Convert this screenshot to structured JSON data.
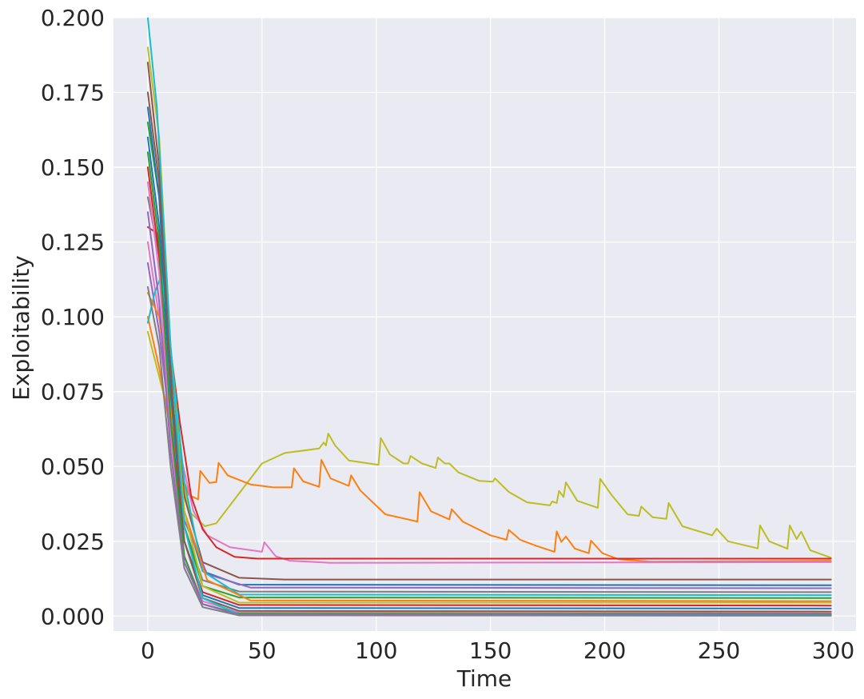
{
  "chart_data": {
    "type": "line",
    "title": "",
    "xlabel": "Time",
    "ylabel": "Exploitability",
    "xlim": [
      -15,
      310
    ],
    "ylim": [
      -0.005,
      0.2
    ],
    "xticks": [
      0,
      50,
      100,
      150,
      200,
      250,
      300
    ],
    "yticks": [
      0.0,
      0.025,
      0.05,
      0.075,
      0.1,
      0.125,
      0.15,
      0.175,
      0.2
    ],
    "ytick_labels": [
      "0.000",
      "0.025",
      "0.050",
      "0.075",
      "0.100",
      "0.125",
      "0.150",
      "0.175",
      "0.200"
    ],
    "grid": true,
    "legend": "none",
    "plot_background": "#eaeaf2",
    "series": [
      {
        "color": "#bcbd22",
        "points": [
          [
            0,
            0.095
          ],
          [
            10,
            0.065
          ],
          [
            18,
            0.035
          ],
          [
            25,
            0.03
          ],
          [
            30,
            0.031
          ],
          [
            40,
            0.041
          ],
          [
            50,
            0.051
          ],
          [
            60,
            0.0545
          ],
          [
            75,
            0.056
          ],
          [
            77,
            0.058
          ],
          [
            78,
            0.057
          ],
          [
            79,
            0.061
          ],
          [
            82,
            0.057
          ],
          [
            88,
            0.052
          ],
          [
            101,
            0.0505
          ],
          [
            102,
            0.0595
          ],
          [
            106,
            0.054
          ],
          [
            112,
            0.051
          ],
          [
            114,
            0.051
          ],
          [
            115,
            0.0535
          ],
          [
            120,
            0.051
          ],
          [
            126,
            0.0495
          ],
          [
            127,
            0.053
          ],
          [
            130,
            0.051
          ],
          [
            132,
            0.051
          ],
          [
            136,
            0.048
          ],
          [
            145,
            0.0452
          ],
          [
            151,
            0.0449
          ],
          [
            152,
            0.046
          ],
          [
            158,
            0.0415
          ],
          [
            166,
            0.038
          ],
          [
            176,
            0.037
          ],
          [
            177,
            0.0383
          ],
          [
            179,
            0.0378
          ],
          [
            180,
            0.0418
          ],
          [
            182,
            0.0398
          ],
          [
            183,
            0.0447
          ],
          [
            188,
            0.0385
          ],
          [
            197,
            0.0362
          ],
          [
            198,
            0.0459
          ],
          [
            203,
            0.0405
          ],
          [
            210,
            0.034
          ],
          [
            215,
            0.0335
          ],
          [
            216,
            0.0366
          ],
          [
            221,
            0.033
          ],
          [
            227,
            0.0325
          ],
          [
            228,
            0.0378
          ],
          [
            234,
            0.03
          ],
          [
            247,
            0.027
          ],
          [
            249,
            0.0292
          ],
          [
            254,
            0.025
          ],
          [
            267,
            0.0226
          ],
          [
            268,
            0.0303
          ],
          [
            272,
            0.025
          ],
          [
            280,
            0.0225
          ],
          [
            281,
            0.0303
          ],
          [
            284,
            0.0258
          ],
          [
            286,
            0.0282
          ],
          [
            290,
            0.022
          ],
          [
            299,
            0.0195
          ]
        ]
      },
      {
        "color": "#ff7f0e",
        "points": [
          [
            0,
            0.1
          ],
          [
            5,
            0.083
          ],
          [
            10,
            0.062
          ],
          [
            14,
            0.049
          ],
          [
            18,
            0.0405
          ],
          [
            22,
            0.039
          ],
          [
            23,
            0.0485
          ],
          [
            27,
            0.0445
          ],
          [
            30,
            0.0448
          ],
          [
            31,
            0.0512
          ],
          [
            35,
            0.047
          ],
          [
            45,
            0.044
          ],
          [
            55,
            0.043
          ],
          [
            63,
            0.043
          ],
          [
            64,
            0.0494
          ],
          [
            68,
            0.045
          ],
          [
            75,
            0.0432
          ],
          [
            76,
            0.0522
          ],
          [
            80,
            0.046
          ],
          [
            88,
            0.0435
          ],
          [
            89,
            0.047
          ],
          [
            93,
            0.042
          ],
          [
            104,
            0.034
          ],
          [
            118,
            0.0316
          ],
          [
            119,
            0.0414
          ],
          [
            124,
            0.035
          ],
          [
            132,
            0.0323
          ],
          [
            133,
            0.0357
          ],
          [
            138,
            0.0315
          ],
          [
            150,
            0.027
          ],
          [
            157,
            0.0255
          ],
          [
            158,
            0.0288
          ],
          [
            163,
            0.0255
          ],
          [
            170,
            0.0235
          ],
          [
            178,
            0.0215
          ],
          [
            179,
            0.0283
          ],
          [
            181,
            0.0248
          ],
          [
            183,
            0.0266
          ],
          [
            187,
            0.0225
          ],
          [
            193,
            0.021
          ],
          [
            194,
            0.0252
          ],
          [
            199,
            0.021
          ],
          [
            206,
            0.019
          ],
          [
            220,
            0.0182
          ],
          [
            299,
            0.0185
          ]
        ]
      },
      {
        "color": "#e377c2",
        "points": [
          [
            0,
            0.125
          ],
          [
            8,
            0.085
          ],
          [
            14,
            0.055
          ],
          [
            20,
            0.035
          ],
          [
            26,
            0.027
          ],
          [
            36,
            0.023
          ],
          [
            50,
            0.0215
          ],
          [
            51,
            0.0247
          ],
          [
            56,
            0.02
          ],
          [
            62,
            0.0185
          ],
          [
            80,
            0.0178
          ],
          [
            299,
            0.018
          ]
        ]
      },
      {
        "color": "#d62728",
        "points": [
          [
            0,
            0.13
          ],
          [
            4,
            0.128
          ],
          [
            9,
            0.095
          ],
          [
            14,
            0.065
          ],
          [
            19,
            0.04
          ],
          [
            24,
            0.029
          ],
          [
            30,
            0.023
          ],
          [
            38,
            0.0198
          ],
          [
            48,
            0.0192
          ],
          [
            299,
            0.0192
          ]
        ]
      },
      {
        "color": "#8c564b",
        "points": [
          [
            0,
            0.185
          ],
          [
            5,
            0.15
          ],
          [
            10,
            0.085
          ],
          [
            16,
            0.04
          ],
          [
            24,
            0.018
          ],
          [
            40,
            0.0128
          ],
          [
            60,
            0.0122
          ],
          [
            299,
            0.0122
          ]
        ]
      },
      {
        "color": "#1f77b4",
        "points": [
          [
            0,
            0.16
          ],
          [
            5,
            0.13
          ],
          [
            10,
            0.075
          ],
          [
            16,
            0.035
          ],
          [
            24,
            0.015
          ],
          [
            40,
            0.0105
          ],
          [
            299,
            0.0103
          ]
        ]
      },
      {
        "color": "#9467bd",
        "points": [
          [
            0,
            0.118
          ],
          [
            5,
            0.095
          ],
          [
            10,
            0.062
          ],
          [
            16,
            0.032
          ],
          [
            26,
            0.014
          ],
          [
            45,
            0.0095
          ],
          [
            299,
            0.0093
          ]
        ]
      },
      {
        "color": "#7f7f7f",
        "points": [
          [
            0,
            0.14
          ],
          [
            5,
            0.12
          ],
          [
            10,
            0.07
          ],
          [
            16,
            0.03
          ],
          [
            24,
            0.012
          ],
          [
            40,
            0.0082
          ],
          [
            299,
            0.008
          ]
        ]
      },
      {
        "color": "#17becf",
        "points": [
          [
            0,
            0.098
          ],
          [
            3,
            0.108
          ],
          [
            6,
            0.114
          ],
          [
            10,
            0.09
          ],
          [
            16,
            0.045
          ],
          [
            24,
            0.015
          ],
          [
            40,
            0.0072
          ],
          [
            299,
            0.007
          ]
        ]
      },
      {
        "color": "#2ca02c",
        "points": [
          [
            0,
            0.165
          ],
          [
            5,
            0.14
          ],
          [
            10,
            0.08
          ],
          [
            16,
            0.03
          ],
          [
            24,
            0.01
          ],
          [
            40,
            0.0062
          ],
          [
            299,
            0.006
          ]
        ]
      },
      {
        "color": "#ff7f0e",
        "points": [
          [
            0,
            0.108
          ],
          [
            5,
            0.1
          ],
          [
            10,
            0.07
          ],
          [
            16,
            0.035
          ],
          [
            26,
            0.012
          ],
          [
            45,
            0.0052
          ],
          [
            299,
            0.005
          ]
        ]
      },
      {
        "color": "#bcbd22",
        "points": [
          [
            0,
            0.19
          ],
          [
            5,
            0.16
          ],
          [
            10,
            0.09
          ],
          [
            16,
            0.035
          ],
          [
            24,
            0.01
          ],
          [
            40,
            0.0045
          ],
          [
            299,
            0.0045
          ]
        ]
      },
      {
        "color": "#d62728",
        "points": [
          [
            0,
            0.15
          ],
          [
            5,
            0.12
          ],
          [
            10,
            0.065
          ],
          [
            16,
            0.025
          ],
          [
            24,
            0.008
          ],
          [
            40,
            0.0037
          ],
          [
            299,
            0.0035
          ]
        ]
      },
      {
        "color": "#1f77b4",
        "points": [
          [
            0,
            0.17
          ],
          [
            5,
            0.14
          ],
          [
            10,
            0.075
          ],
          [
            16,
            0.025
          ],
          [
            24,
            0.007
          ],
          [
            40,
            0.0027
          ],
          [
            299,
            0.0025
          ]
        ]
      },
      {
        "color": "#8c564b",
        "points": [
          [
            0,
            0.175
          ],
          [
            5,
            0.145
          ],
          [
            10,
            0.08
          ],
          [
            16,
            0.025
          ],
          [
            24,
            0.006
          ],
          [
            40,
            0.0017
          ],
          [
            299,
            0.0015
          ]
        ]
      },
      {
        "color": "#e377c2",
        "points": [
          [
            0,
            0.145
          ],
          [
            5,
            0.115
          ],
          [
            10,
            0.06
          ],
          [
            16,
            0.02
          ],
          [
            24,
            0.005
          ],
          [
            40,
            0.0012
          ],
          [
            299,
            0.001
          ]
        ]
      },
      {
        "color": "#2ca02c",
        "points": [
          [
            0,
            0.155
          ],
          [
            5,
            0.125
          ],
          [
            10,
            0.065
          ],
          [
            16,
            0.02
          ],
          [
            24,
            0.004
          ],
          [
            40,
            0.0008
          ],
          [
            299,
            0.0007
          ]
        ]
      },
      {
        "color": "#17becf",
        "points": [
          [
            0,
            0.2
          ],
          [
            4,
            0.17
          ],
          [
            10,
            0.09
          ],
          [
            16,
            0.03
          ],
          [
            24,
            0.006
          ],
          [
            40,
            0.0005
          ],
          [
            299,
            0.0003
          ]
        ]
      },
      {
        "color": "#9467bd",
        "points": [
          [
            0,
            0.135
          ],
          [
            5,
            0.105
          ],
          [
            10,
            0.055
          ],
          [
            16,
            0.018
          ],
          [
            24,
            0.004
          ],
          [
            40,
            0.0004
          ],
          [
            299,
            0.0002
          ]
        ]
      },
      {
        "color": "#7f7f7f",
        "points": [
          [
            0,
            0.11
          ],
          [
            5,
            0.09
          ],
          [
            10,
            0.05
          ],
          [
            16,
            0.016
          ],
          [
            24,
            0.003
          ],
          [
            40,
            0.0002
          ],
          [
            299,
            0.0001
          ]
        ]
      }
    ]
  }
}
